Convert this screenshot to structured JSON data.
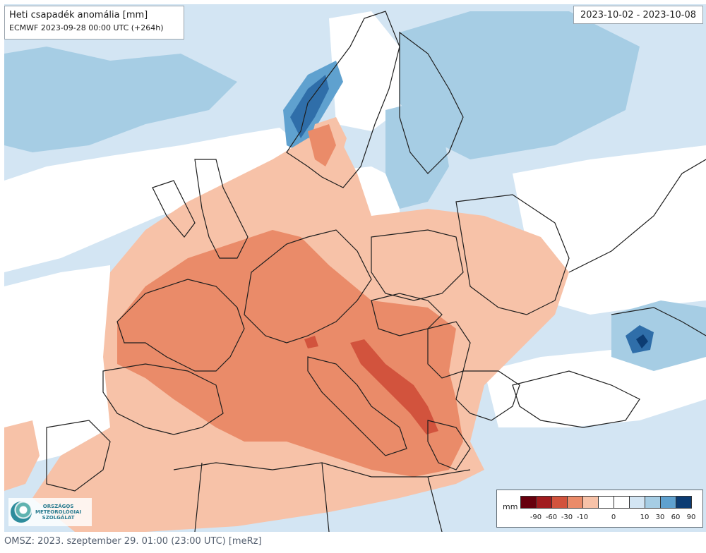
{
  "map": {
    "title": "Heti csapadék anomália [mm]",
    "model_run": "ECMWF 2023-09-28 00:00 UTC (+264h)",
    "period": "2023-10-02 - 2023-10-08",
    "region": "Europe",
    "colors": {
      "sea_base": "#d3e5f3",
      "negative": [
        "#67000d",
        "#a11c1f",
        "#d2533d",
        "#ea8b69",
        "#f7c2a8"
      ],
      "neutral": "#ffffff",
      "positive": [
        "#d3e5f3",
        "#a6cde4",
        "#5fa1cf",
        "#2f6ea9",
        "#0c3c73"
      ],
      "border": "#1e1e1e"
    }
  },
  "legend": {
    "unit": "mm",
    "labels": [
      "-90",
      "-60",
      "-30",
      "-10",
      "0",
      "10",
      "30",
      "60",
      "90"
    ]
  },
  "logo": {
    "name_lines": [
      "ORSZÁGOS",
      "METEOROLÓGIAI",
      "SZOLGÁLAT"
    ],
    "icon": "omsz-logo-icon"
  },
  "footer": {
    "text": "OMSZ: 2023. szeptember 29. 01:00 (23:00  UTC)  [meRz]"
  }
}
